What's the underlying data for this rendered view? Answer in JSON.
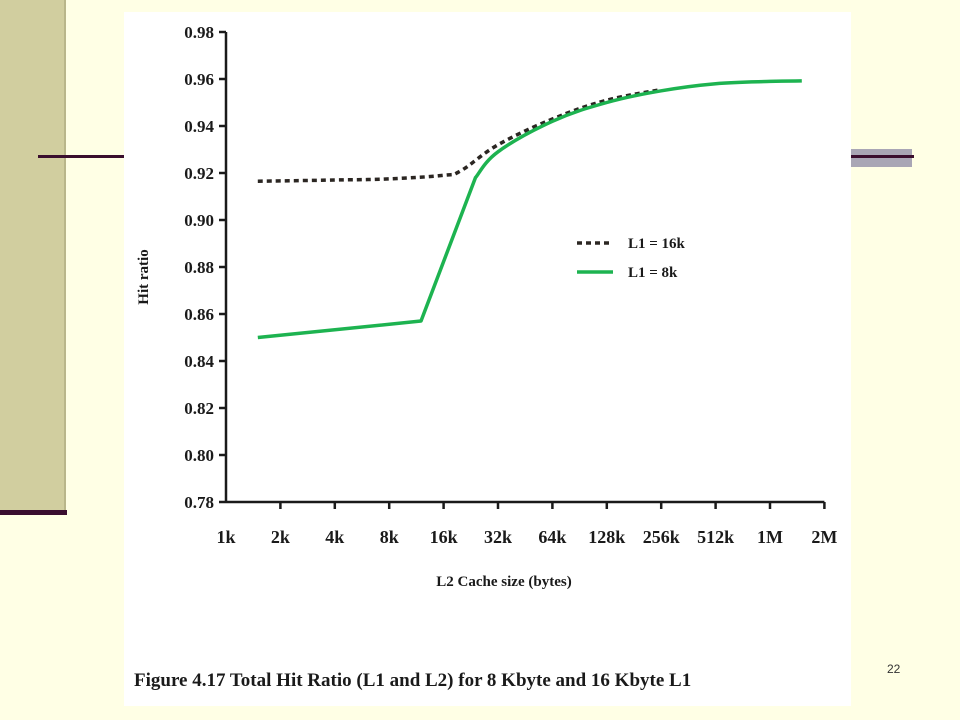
{
  "slide": {
    "page_number": "22",
    "caption": "Figure 4.17 Total Hit Ratio (L1 and L2) for 8 Kbyte and 16 Kbyte L1"
  },
  "chart_data": {
    "type": "line",
    "title": "",
    "xlabel": "L2 Cache size (bytes)",
    "ylabel": "Hit ratio",
    "x_scale": "log2",
    "categories": [
      "1k",
      "2k",
      "4k",
      "8k",
      "16k",
      "32k",
      "64k",
      "128k",
      "256k",
      "512k",
      "1M",
      "2M"
    ],
    "ylim": [
      0.78,
      0.98
    ],
    "yticks": [
      "0.78",
      "0.80",
      "0.82",
      "0.84",
      "0.86",
      "0.88",
      "0.90",
      "0.92",
      "0.94",
      "0.96",
      "0.98"
    ],
    "legend_position": "right-middle",
    "grid": false,
    "series": [
      {
        "name": "L1 = 16k",
        "style": "dotted",
        "color": "#2b2622",
        "points": [
          {
            "x": "1.5k",
            "y": 0.9165
          },
          {
            "x": "4k",
            "y": 0.917
          },
          {
            "x": "8k",
            "y": 0.9175
          },
          {
            "x": "16k",
            "y": 0.919
          },
          {
            "x": "20k",
            "y": 0.921
          },
          {
            "x": "32k",
            "y": 0.932
          },
          {
            "x": "64k",
            "y": 0.943
          },
          {
            "x": "128k",
            "y": 0.951
          },
          {
            "x": "256k",
            "y": 0.9555
          }
        ]
      },
      {
        "name": "L1 = 8k",
        "style": "solid",
        "color": "#1db350",
        "points": [
          {
            "x": "1.5k",
            "y": 0.85
          },
          {
            "x": "12k",
            "y": 0.857
          },
          {
            "x": "24k",
            "y": 0.918
          },
          {
            "x": "32k",
            "y": 0.929
          },
          {
            "x": "64k",
            "y": 0.942
          },
          {
            "x": "128k",
            "y": 0.95
          },
          {
            "x": "256k",
            "y": 0.955
          },
          {
            "x": "512k",
            "y": 0.958
          },
          {
            "x": "1M",
            "y": 0.959
          },
          {
            "x": "1.5M",
            "y": 0.9592
          }
        ]
      }
    ]
  }
}
